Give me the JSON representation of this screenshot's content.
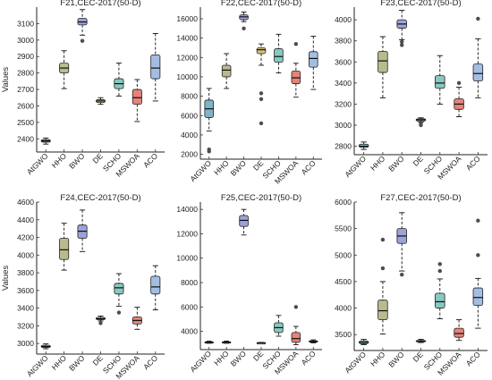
{
  "figure": {
    "algorithms": [
      "AtGWO",
      "HHO",
      "BWO",
      "DE",
      "SCHO",
      "MSWOA",
      "ACO"
    ],
    "colors": [
      "#7fb4c8",
      "#b9bb8f",
      "#9ca3d8",
      "#d9c178",
      "#88c9c0",
      "#e6837a",
      "#a4bee3"
    ],
    "outlier_color": "#4d4d4d"
  },
  "chart_data": [
    {
      "type": "box",
      "title": "F21,CEC-2017(50-D)",
      "ylabel": "Values",
      "ylim": [
        2320,
        3200
      ],
      "yticks": [
        2400,
        2500,
        2600,
        2700,
        2800,
        2900,
        3000,
        3100
      ],
      "tick_labels": [
        "2400",
        "2500",
        "2600",
        "2700",
        "2800",
        "2900",
        "3000",
        "3100"
      ],
      "categories": [
        "AtGWO",
        "HHO",
        "BWO",
        "DE",
        "SCHO",
        "MSWOA",
        "ACO"
      ],
      "boxes": [
        {
          "min": 2368,
          "q1": 2380,
          "median": 2387,
          "q3": 2395,
          "max": 2405,
          "outliers": []
        },
        {
          "min": 2705,
          "q1": 2800,
          "median": 2830,
          "q3": 2860,
          "max": 2935,
          "outliers": []
        },
        {
          "min": 3030,
          "q1": 3092,
          "median": 3110,
          "q3": 3132,
          "max": 3185,
          "outliers": [
            2995
          ]
        },
        {
          "min": 2610,
          "q1": 2621,
          "median": 2630,
          "q3": 2638,
          "max": 2650,
          "outliers": []
        },
        {
          "min": 2660,
          "q1": 2705,
          "median": 2735,
          "q3": 2765,
          "max": 2860,
          "outliers": []
        },
        {
          "min": 2505,
          "q1": 2610,
          "median": 2650,
          "q3": 2700,
          "max": 2760,
          "outliers": []
        },
        {
          "min": 2630,
          "q1": 2765,
          "median": 2830,
          "q3": 2910,
          "max": 3040,
          "outliers": []
        }
      ]
    },
    {
      "type": "box",
      "title": "F22,CEC-2017(50-D)",
      "ylabel": "",
      "ylim": [
        1500,
        17200
      ],
      "yticks": [
        2000,
        4000,
        6000,
        8000,
        10000,
        12000,
        14000,
        16000
      ],
      "tick_labels": [
        "2000",
        "4000",
        "6000",
        "8000",
        "10000",
        "12000",
        "14000",
        "16000"
      ],
      "categories": [
        "AtGWO",
        "HHO",
        "BWO",
        "DE",
        "SCHO",
        "MSWOA",
        "ACO"
      ],
      "boxes": [
        {
          "min": 4400,
          "q1": 5800,
          "median": 6700,
          "q3": 7600,
          "max": 8800,
          "outliers": [
            2300,
            2500
          ]
        },
        {
          "min": 8800,
          "q1": 10000,
          "median": 10700,
          "q3": 11200,
          "max": 12400,
          "outliers": []
        },
        {
          "min": 15700,
          "q1": 15900,
          "median": 16200,
          "q3": 16400,
          "max": 16700,
          "outliers": [
            15000
          ]
        },
        {
          "min": 11200,
          "q1": 12400,
          "median": 12800,
          "q3": 13000,
          "max": 13400,
          "outliers": [
            5200,
            7700,
            8300
          ]
        },
        {
          "min": 10400,
          "q1": 11500,
          "median": 12100,
          "q3": 12900,
          "max": 14400,
          "outliers": []
        },
        {
          "min": 7900,
          "q1": 9300,
          "median": 9900,
          "q3": 10600,
          "max": 11400,
          "outliers": [
            13400
          ]
        },
        {
          "min": 8700,
          "q1": 11000,
          "median": 11900,
          "q3": 12600,
          "max": 14200,
          "outliers": []
        }
      ]
    },
    {
      "type": "box",
      "title": "F23,CEC-2017(50-D)",
      "ylabel": "",
      "ylim": [
        2720,
        4120
      ],
      "yticks": [
        2800,
        3000,
        3200,
        3400,
        3600,
        3800,
        4000
      ],
      "tick_labels": [
        "2800",
        "3000",
        "3200",
        "3400",
        "3600",
        "3800",
        "4000"
      ],
      "categories": [
        "AtGWO",
        "HHO",
        "BWO",
        "DE",
        "SCHO",
        "MSWOA",
        "ACO"
      ],
      "boxes": [
        {
          "min": 2770,
          "q1": 2790,
          "median": 2800,
          "q3": 2820,
          "max": 2840,
          "outliers": []
        },
        {
          "min": 3260,
          "q1": 3500,
          "median": 3610,
          "q3": 3700,
          "max": 3840,
          "outliers": []
        },
        {
          "min": 3810,
          "q1": 3920,
          "median": 3960,
          "q3": 4000,
          "max": 4090,
          "outliers": [
            3760,
            3790
          ]
        },
        {
          "min": 3030,
          "q1": 3040,
          "median": 3050,
          "q3": 3060,
          "max": 3070,
          "outliers": [
            3000,
            3020
          ]
        },
        {
          "min": 3200,
          "q1": 3350,
          "median": 3400,
          "q3": 3470,
          "max": 3660,
          "outliers": []
        },
        {
          "min": 3080,
          "q1": 3150,
          "median": 3200,
          "q3": 3250,
          "max": 3360,
          "outliers": [
            3400
          ]
        },
        {
          "min": 3260,
          "q1": 3420,
          "median": 3490,
          "q3": 3580,
          "max": 3820,
          "outliers": [
            4010
          ]
        }
      ]
    },
    {
      "type": "box",
      "title": "F24,CEC-2017(50-D)",
      "ylabel": "Values",
      "ylim": [
        2880,
        4600
      ],
      "yticks": [
        3000,
        3200,
        3400,
        3600,
        3800,
        4000,
        4200,
        4400,
        4600
      ],
      "tick_labels": [
        "3000",
        "3200",
        "3400",
        "3600",
        "3800",
        "4000",
        "4200",
        "4400",
        "4600"
      ],
      "categories": [
        "AtGWO",
        "HHO",
        "BWO",
        "DE",
        "SCHO",
        "MSWOA",
        "ACO"
      ],
      "boxes": [
        {
          "min": 2940,
          "q1": 2955,
          "median": 2965,
          "q3": 2980,
          "max": 2995,
          "outliers": []
        },
        {
          "min": 3830,
          "q1": 3950,
          "median": 4060,
          "q3": 4190,
          "max": 4360,
          "outliers": []
        },
        {
          "min": 4040,
          "q1": 4190,
          "median": 4270,
          "q3": 4340,
          "max": 4510,
          "outliers": []
        },
        {
          "min": 3255,
          "q1": 3270,
          "median": 3280,
          "q3": 3295,
          "max": 3310,
          "outliers": [
            3230
          ]
        },
        {
          "min": 3420,
          "q1": 3560,
          "median": 3630,
          "q3": 3680,
          "max": 3790,
          "outliers": [
            3350
          ]
        },
        {
          "min": 3160,
          "q1": 3220,
          "median": 3260,
          "q3": 3300,
          "max": 3410,
          "outliers": []
        },
        {
          "min": 3380,
          "q1": 3560,
          "median": 3640,
          "q3": 3760,
          "max": 3880,
          "outliers": []
        }
      ]
    },
    {
      "type": "box",
      "title": "F25,CEC-2017(50-D)",
      "ylabel": "",
      "ylim": [
        2500,
        14600
      ],
      "yticks": [
        4000,
        6000,
        8000,
        10000,
        12000,
        14000
      ],
      "tick_labels": [
        "4000",
        "6000",
        "8000",
        "10000",
        "12000",
        "14000"
      ],
      "categories": [
        "AtGWO",
        "HHO",
        "BWO",
        "DE",
        "SCHO",
        "MSWOA",
        "ACO"
      ],
      "boxes": [
        {
          "min": 3020,
          "q1": 3070,
          "median": 3100,
          "q3": 3140,
          "max": 3190,
          "outliers": []
        },
        {
          "min": 3020,
          "q1": 3060,
          "median": 3100,
          "q3": 3140,
          "max": 3200,
          "outliers": []
        },
        {
          "min": 11900,
          "q1": 12600,
          "median": 13100,
          "q3": 13500,
          "max": 14000,
          "outliers": []
        },
        {
          "min": 3030,
          "q1": 3050,
          "median": 3060,
          "q3": 3070,
          "max": 3090,
          "outliers": []
        },
        {
          "min": 3600,
          "q1": 3900,
          "median": 4300,
          "q3": 4700,
          "max": 5300,
          "outliers": []
        },
        {
          "min": 2900,
          "q1": 3100,
          "median": 3400,
          "q3": 3900,
          "max": 4400,
          "outliers": [
            6000
          ]
        },
        {
          "min": 3050,
          "q1": 3110,
          "median": 3160,
          "q3": 3220,
          "max": 3300,
          "outliers": []
        }
      ]
    },
    {
      "type": "box",
      "title": "F27,CEC-2017(50-D)",
      "ylabel": "",
      "ylim": [
        3200,
        6000
      ],
      "yticks": [
        3500,
        4000,
        4500,
        5000,
        5500,
        6000
      ],
      "tick_labels": [
        "3500",
        "4000",
        "4500",
        "5000",
        "5500",
        "6000"
      ],
      "categories": [
        "AtGWO",
        "HHO",
        "BWO",
        "DE",
        "SCHO",
        "MSWOA",
        "ACO"
      ],
      "boxes": [
        {
          "min": 3310,
          "q1": 3330,
          "median": 3350,
          "q3": 3380,
          "max": 3410,
          "outliers": []
        },
        {
          "min": 3510,
          "q1": 3780,
          "median": 3950,
          "q3": 4150,
          "max": 4500,
          "outliers": [
            4750,
            5290
          ]
        },
        {
          "min": 4700,
          "q1": 5220,
          "median": 5360,
          "q3": 5500,
          "max": 5800,
          "outliers": [
            4630
          ]
        },
        {
          "min": 3350,
          "q1": 3365,
          "median": 3375,
          "q3": 3390,
          "max": 3410,
          "outliers": []
        },
        {
          "min": 3800,
          "q1": 4000,
          "median": 4120,
          "q3": 4280,
          "max": 4550,
          "outliers": [
            4700,
            4830
          ]
        },
        {
          "min": 3390,
          "q1": 3450,
          "median": 3520,
          "q3": 3620,
          "max": 3780,
          "outliers": []
        },
        {
          "min": 3620,
          "q1": 4050,
          "median": 4200,
          "q3": 4380,
          "max": 4560,
          "outliers": [
            5000,
            5650
          ]
        }
      ]
    }
  ]
}
